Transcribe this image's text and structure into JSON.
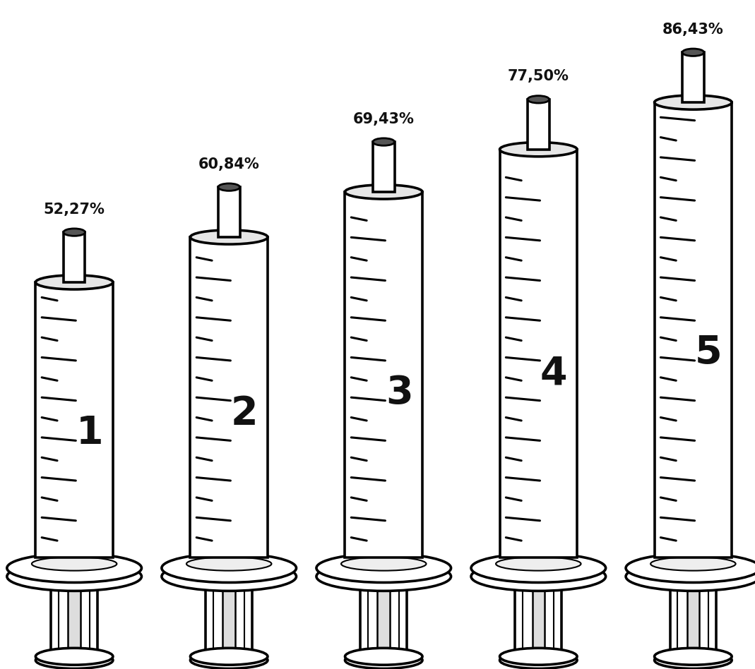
{
  "chart_data": {
    "type": "bar",
    "categories": [
      "1",
      "2",
      "3",
      "4",
      "5"
    ],
    "values": [
      52.27,
      60.84,
      69.43,
      77.5,
      86.43
    ],
    "value_labels": [
      "52,27%",
      "60,84%",
      "69,43%",
      "77,50%",
      "86,43%"
    ],
    "data_labels": true,
    "tick_labels": false
  }
}
